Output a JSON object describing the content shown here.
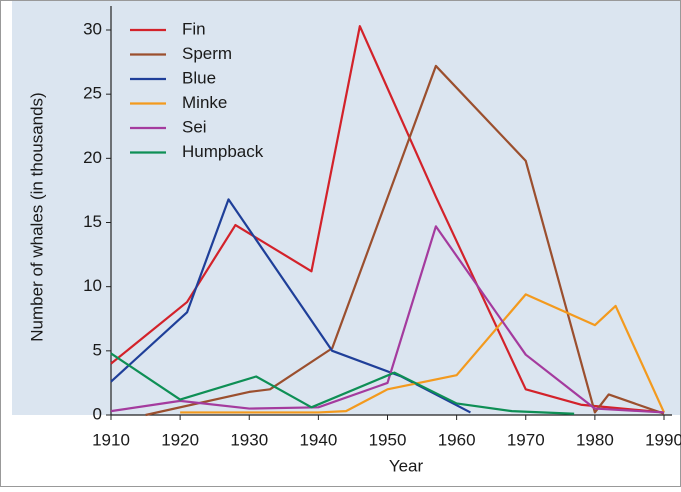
{
  "chart_data": {
    "type": "line",
    "x_label": "Year",
    "y_label": "Number of whales (in thousands)",
    "xlim": [
      1910,
      1990
    ],
    "xticks": [
      1910,
      1920,
      1930,
      1940,
      1950,
      1960,
      1970,
      1980,
      1990
    ],
    "ylim": [
      0,
      30
    ],
    "yticks": [
      0,
      5,
      10,
      15,
      20,
      25,
      30
    ],
    "legend": "upper left",
    "series": [
      {
        "name": "Fin",
        "color": "#d3222a",
        "x": [
          1910,
          1921,
          1928,
          1939,
          1946,
          1957,
          1970,
          1978,
          1990
        ],
        "values": [
          4,
          8.8,
          14.8,
          11.2,
          30.3,
          17,
          2,
          0.8,
          0.2
        ]
      },
      {
        "name": "Sperm",
        "color": "#9b4f2e",
        "x": [
          1915,
          1930,
          1933,
          1942,
          1957,
          1970,
          1980,
          1982,
          1990
        ],
        "values": [
          0,
          1.8,
          2,
          5.2,
          27.2,
          19.8,
          0.2,
          1.6,
          0.1
        ]
      },
      {
        "name": "Blue",
        "color": "#1f3f99",
        "x": [
          1910,
          1921,
          1927,
          1942,
          1952,
          1962
        ],
        "values": [
          2.6,
          8,
          16.8,
          5,
          3,
          0.2
        ]
      },
      {
        "name": "Minke",
        "color": "#f39a1e",
        "x": [
          1920,
          1940,
          1944,
          1950,
          1960,
          1970,
          1980,
          1983,
          1990
        ],
        "values": [
          0.2,
          0.2,
          0.3,
          2,
          3.1,
          9.4,
          7,
          8.5,
          0.2
        ]
      },
      {
        "name": "Sei",
        "color": "#a43b9e",
        "x": [
          1910,
          1920,
          1930,
          1940,
          1950,
          1957,
          1970,
          1980,
          1990
        ],
        "values": [
          0.3,
          1.1,
          0.5,
          0.6,
          2.5,
          14.7,
          4.7,
          0.5,
          0.2
        ]
      },
      {
        "name": "Humpback",
        "color": "#0e8f55",
        "x": [
          1910,
          1920,
          1931,
          1939,
          1951,
          1960,
          1968,
          1977
        ],
        "values": [
          4.8,
          1.2,
          3,
          0.6,
          3.3,
          0.9,
          0.3,
          0.1
        ]
      }
    ]
  }
}
